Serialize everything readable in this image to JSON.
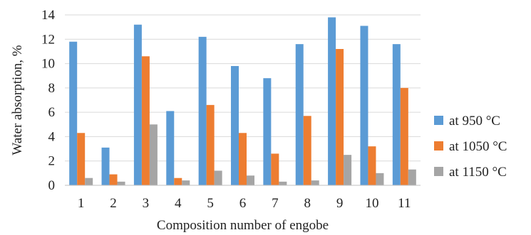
{
  "chart_data": {
    "type": "bar",
    "title": "",
    "xlabel": "Composition number of engobe",
    "ylabel": "Water absorption, %",
    "ylim": [
      0,
      14
    ],
    "yticks": [
      0,
      2,
      4,
      6,
      8,
      10,
      12,
      14
    ],
    "grid": true,
    "legend_position": "right",
    "categories": [
      "1",
      "2",
      "3",
      "4",
      "5",
      "6",
      "7",
      "8",
      "9",
      "10",
      "11"
    ],
    "series": [
      {
        "name": "at 950 °C",
        "color": "#5b9bd5",
        "values": [
          11.8,
          3.1,
          13.2,
          6.1,
          12.2,
          9.8,
          8.8,
          11.6,
          13.8,
          13.1,
          11.6
        ]
      },
      {
        "name": "at 1050 °C",
        "color": "#ed7d31",
        "values": [
          4.3,
          0.9,
          10.6,
          0.6,
          6.6,
          4.3,
          2.6,
          5.7,
          11.2,
          3.2,
          8.0
        ]
      },
      {
        "name": "at 1150 °C",
        "color": "#a5a5a5",
        "values": [
          0.6,
          0.3,
          5.0,
          0.4,
          1.2,
          0.8,
          0.3,
          0.4,
          2.5,
          1.0,
          1.3
        ]
      }
    ]
  }
}
